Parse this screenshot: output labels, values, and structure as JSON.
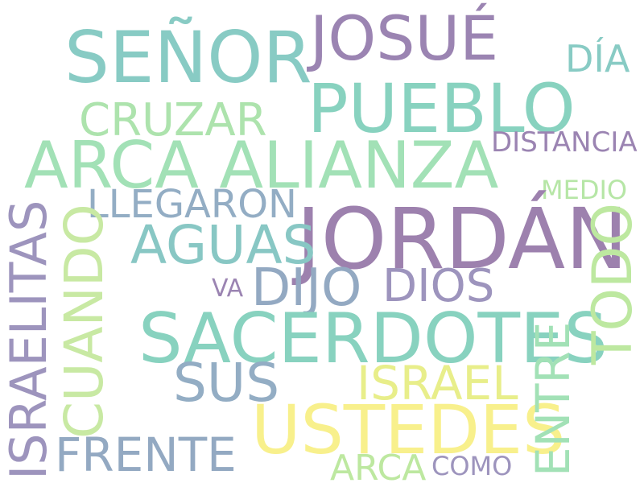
{
  "words": {
    "senor": {
      "text": "SEÑOR",
      "color": "#88cbc4"
    },
    "josue": {
      "text": "JOSUÉ",
      "color": "#9b84b2"
    },
    "dia": {
      "text": "DÍA",
      "color": "#88cbc4"
    },
    "pueblo": {
      "text": "PUEBLO",
      "color": "#88d2bf"
    },
    "cruzar": {
      "text": "CRUZAR",
      "color": "#ade3ad"
    },
    "distancia": {
      "text": "DISTANCIA",
      "color": "#9b84b2"
    },
    "arca_alianza": {
      "text": "ARCA ALIANZA",
      "color": "#a2e1b6"
    },
    "medio": {
      "text": "MEDIO",
      "color": "#b6e6a6"
    },
    "llegaron": {
      "text": "LLEGARON",
      "color": "#93adc4"
    },
    "jordan": {
      "text": "JORDÁN",
      "color": "#9d81ae"
    },
    "aguas": {
      "text": "AGUAS",
      "color": "#88c7c4"
    },
    "dijo": {
      "text": "DIJO",
      "color": "#93a9c2"
    },
    "dios": {
      "text": "DIOS",
      "color": "#9d94bd"
    },
    "va": {
      "text": "VA",
      "color": "#9b84b2"
    },
    "sacerdotes": {
      "text": "SACERDOTES",
      "color": "#88d2bf"
    },
    "sus": {
      "text": "SUS",
      "color": "#93adc4"
    },
    "israel": {
      "text": "ISRAEL",
      "color": "#e8ee8a"
    },
    "ustedes": {
      "text": "USTEDES",
      "color": "#f8f08c"
    },
    "frente": {
      "text": "FRENTE",
      "color": "#93a9c2"
    },
    "arca": {
      "text": "ARCA",
      "color": "#bde8a0"
    },
    "como": {
      "text": "COMO",
      "color": "#9d94bd"
    },
    "israelitas": {
      "text": "ISRAELITAS",
      "color": "#9d94bd"
    },
    "cuando": {
      "text": "CUANDO",
      "color": "#c8e9a3"
    },
    "entre": {
      "text": "ENTRE",
      "color": "#a2e1b6"
    },
    "todo": {
      "text": "TODO",
      "color": "#bde8a0"
    }
  }
}
